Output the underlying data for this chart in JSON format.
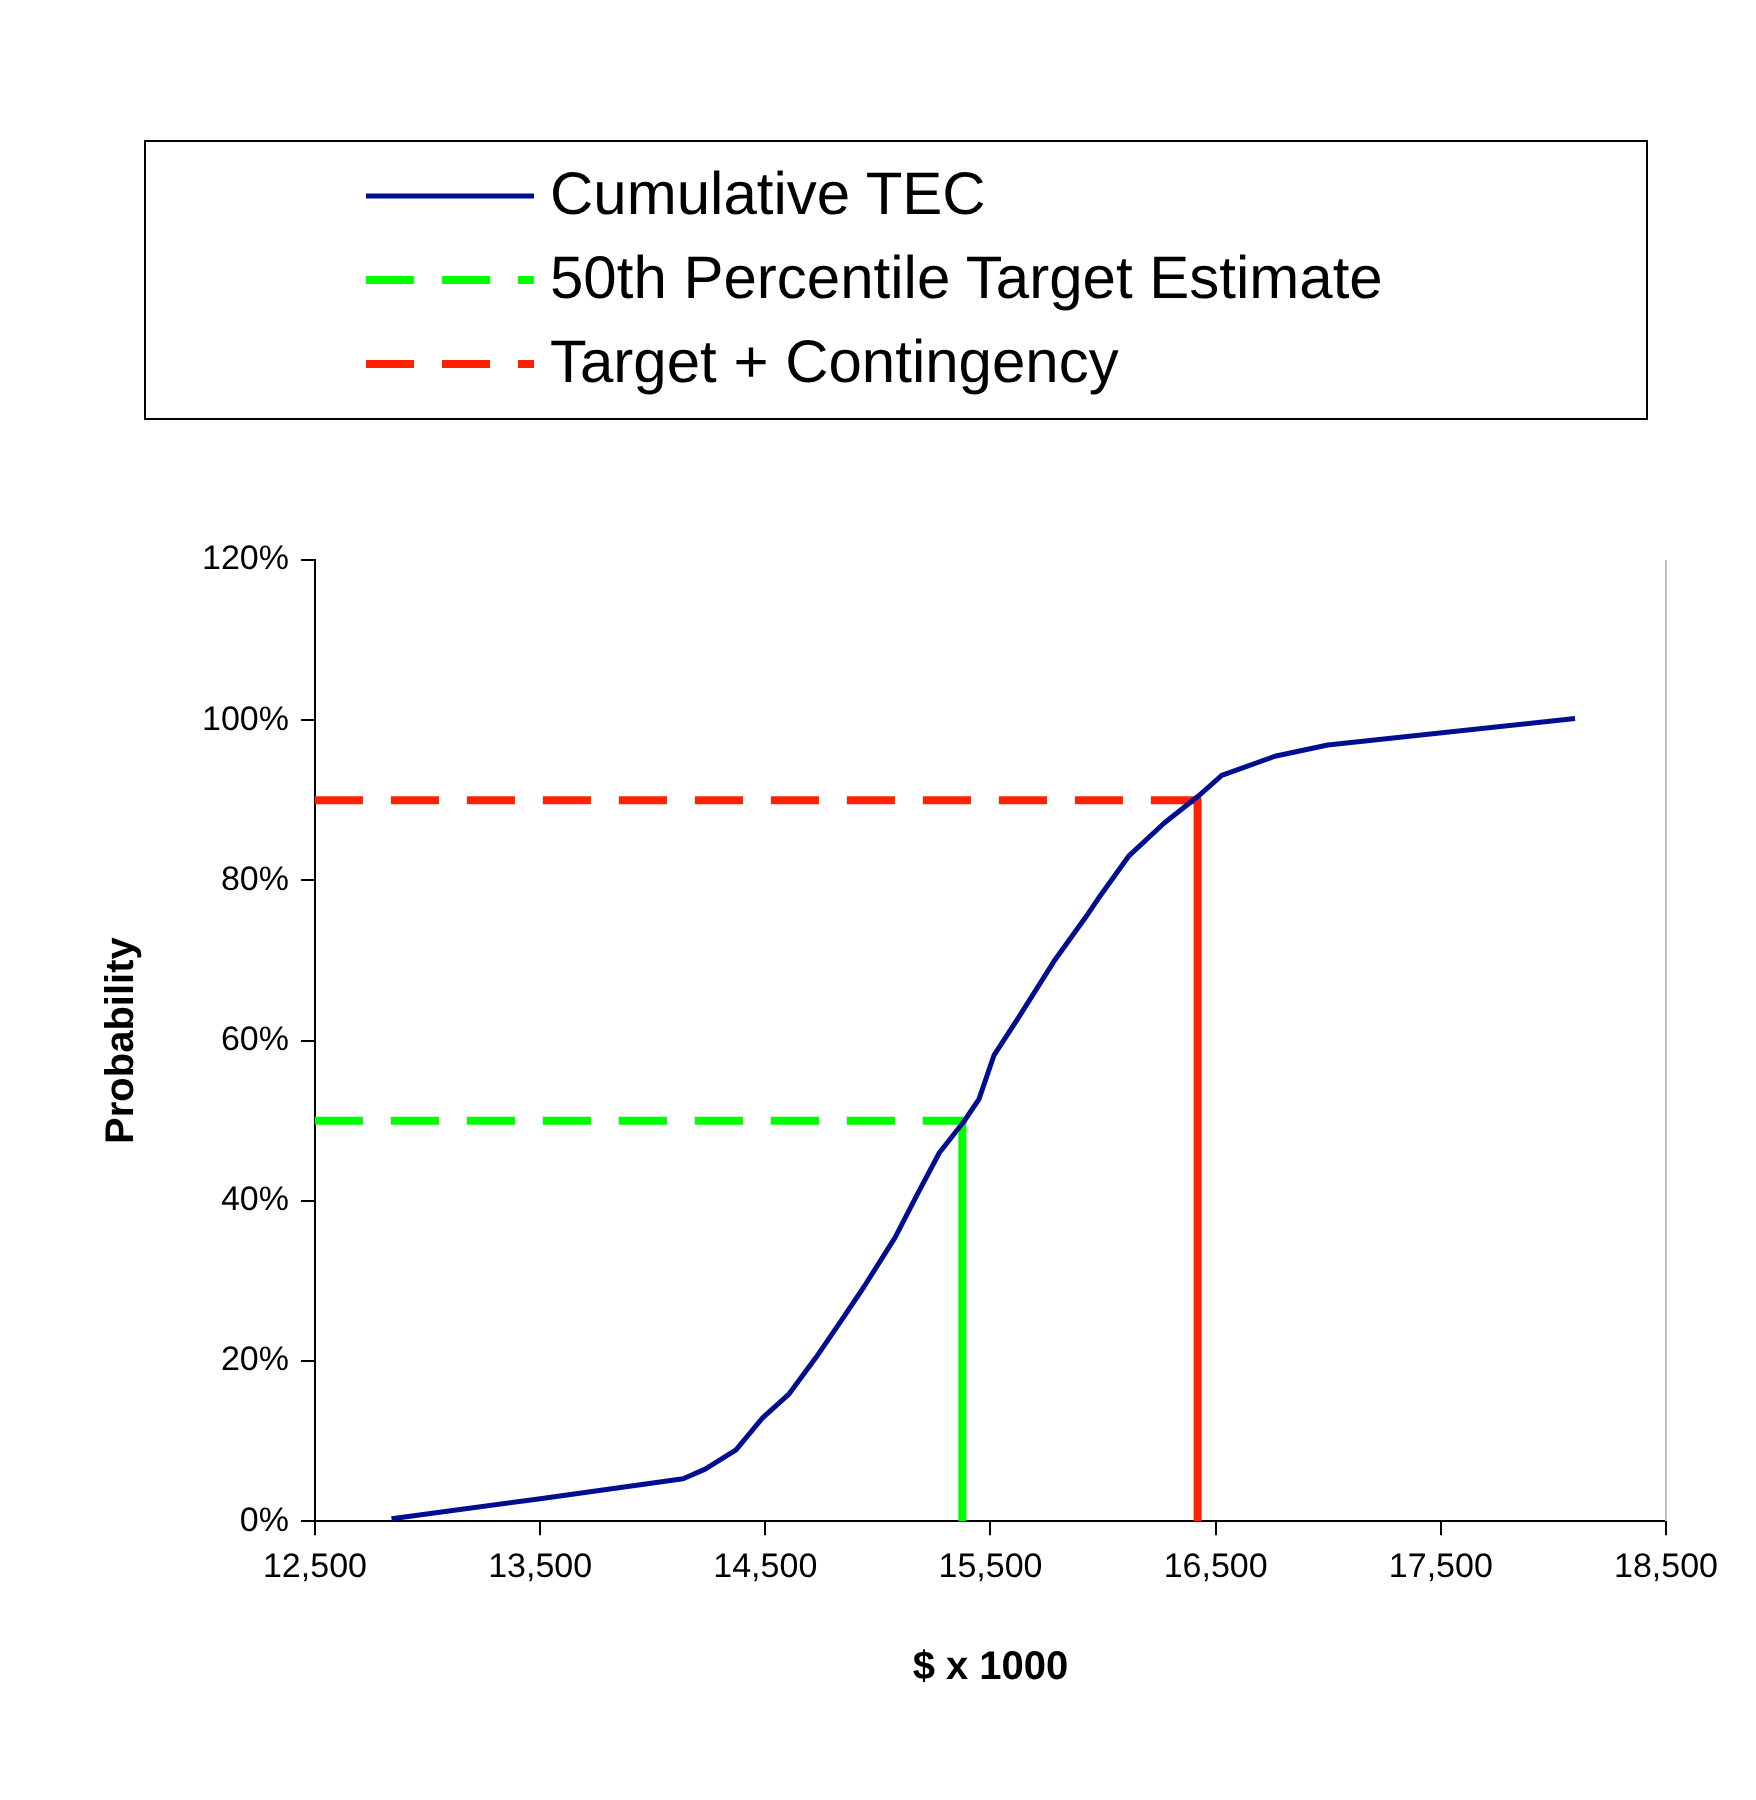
{
  "chart_data": {
    "type": "line",
    "xlabel": "$ x 1000",
    "ylabel": "Probability",
    "legend": "top",
    "grid": false,
    "marker": "none",
    "xlim": [
      12500,
      18500
    ],
    "xticks": [
      {
        "value": 12500,
        "label": "12,500"
      },
      {
        "value": 13500,
        "label": "13,500"
      },
      {
        "value": 14500,
        "label": "14,500"
      },
      {
        "value": 15500,
        "label": "15,500"
      },
      {
        "value": 16500,
        "label": "16,500"
      },
      {
        "value": 17500,
        "label": "17,500"
      },
      {
        "value": 18500,
        "label": "18,500"
      }
    ],
    "ylim": [
      0,
      120
    ],
    "yticks": [
      {
        "value": 0,
        "label": "0%"
      },
      {
        "value": 20,
        "label": "20%"
      },
      {
        "value": 40,
        "label": "40%"
      },
      {
        "value": 60,
        "label": "60%"
      },
      {
        "value": 80,
        "label": "80%"
      },
      {
        "value": 100,
        "label": "100%"
      },
      {
        "value": 120,
        "label": "120%"
      }
    ],
    "series": [
      {
        "name": "Cumulative TEC",
        "color": "#000e8f",
        "line_style": "solid",
        "x": [
          12840,
          13500,
          14135,
          14233,
          14370,
          14488,
          14606,
          14724,
          14841,
          14939,
          15076,
          15175,
          15273,
          15382,
          15449,
          15516,
          15625,
          15782,
          15920,
          15978,
          16116,
          16273,
          16422,
          16527,
          16763,
          16998,
          18096
        ],
        "values": [
          0.3,
          2.8,
          5.3,
          6.5,
          8.9,
          12.9,
          15.9,
          20.4,
          25.2,
          29.3,
          35.4,
          40.8,
          46,
          49.9,
          52.7,
          58.2,
          62.9,
          69.9,
          75.3,
          77.7,
          83.1,
          87.2,
          90.5,
          93.1,
          95.5,
          96.9,
          100.2
        ]
      },
      {
        "name": "50th Percentile Target Estimate",
        "color": "#00ff00",
        "line_style": "dashed",
        "x": [
          12500,
          15375
        ],
        "values": [
          50,
          50
        ]
      },
      {
        "color": "#00ff00",
        "line_style": "solid",
        "x": [
          15375,
          15375
        ],
        "values": [
          50,
          0
        ]
      },
      {
        "name": "Target + Contingency",
        "color": "#ff2200",
        "line_style": "dashed",
        "x": [
          12500,
          16420
        ],
        "values": [
          90,
          90
        ]
      },
      {
        "color": "#ff2200",
        "line_style": "solid",
        "x": [
          16420,
          16420
        ],
        "values": [
          90,
          0
        ]
      }
    ]
  }
}
